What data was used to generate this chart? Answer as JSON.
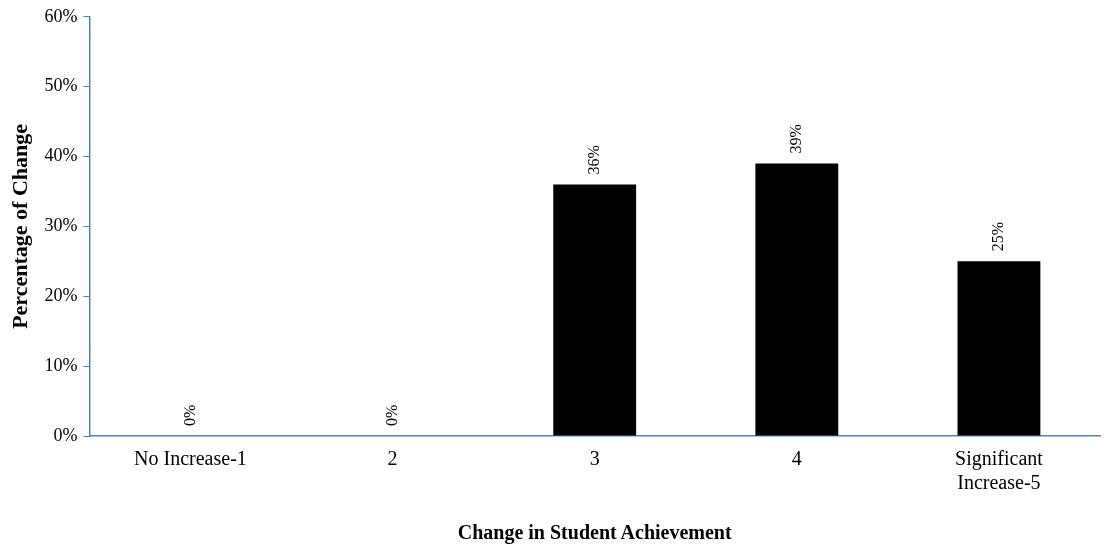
{
  "chart_data": {
    "type": "bar",
    "xlabel": "Change in Student Achievement",
    "ylabel": "Percentage of Change",
    "categories": [
      "No Increase-1",
      "2",
      "3",
      "4",
      "Significant Increase-5"
    ],
    "values": [
      0,
      0,
      36,
      39,
      25
    ],
    "value_labels": [
      "0%",
      "0%",
      "36%",
      "39%",
      "25%"
    ],
    "color": "#000000",
    "ylim": [
      0,
      60
    ],
    "yticks": [
      {
        "value": 0,
        "label": "0%"
      },
      {
        "value": 10,
        "label": "10%"
      },
      {
        "value": 20,
        "label": "20%"
      },
      {
        "value": 30,
        "label": "30%"
      },
      {
        "value": 40,
        "label": "40%"
      },
      {
        "value": 50,
        "label": "50%"
      },
      {
        "value": 60,
        "label": "60%"
      }
    ],
    "grid": false,
    "legend": false
  }
}
